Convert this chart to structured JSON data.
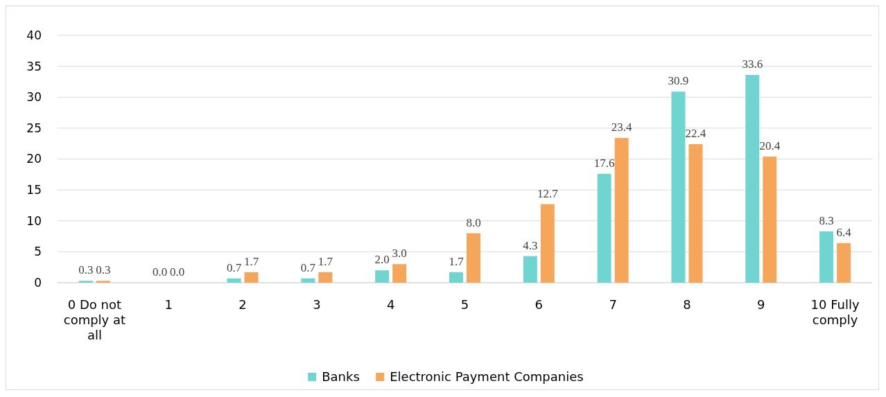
{
  "chart_data": {
    "type": "bar",
    "categories": [
      "0 Do not comply at all",
      "1",
      "2",
      "3",
      "4",
      "5",
      "6",
      "7",
      "8",
      "9",
      "10 Fully comply"
    ],
    "series": [
      {
        "name": "Banks",
        "color": "#70d5d1",
        "values": [
          0.3,
          0.0,
          0.7,
          0.7,
          2.0,
          1.7,
          4.3,
          17.6,
          30.9,
          33.6,
          8.3
        ],
        "value_labels": [
          "0.3",
          "0.0",
          "0.7",
          "0.7",
          "2.0",
          "1.7",
          "4.3",
          "17.6",
          "30.9",
          "33.6",
          "8.3"
        ]
      },
      {
        "name": "Electronic Payment Companies",
        "color": "#f5a65b",
        "values": [
          0.3,
          0.0,
          1.7,
          1.7,
          3.0,
          8.0,
          12.7,
          23.4,
          22.4,
          20.4,
          6.4
        ],
        "value_labels": [
          "0.3",
          "0.0",
          "1.7",
          "1.7",
          "3.0",
          "8.0",
          "12.7",
          "23.4",
          "22.4",
          "20.4",
          "6.4"
        ]
      }
    ],
    "ylim": [
      0,
      40
    ],
    "yticks": [
      0,
      5,
      10,
      15,
      20,
      25,
      30,
      35,
      40
    ],
    "grid": "y",
    "legend": "bottom"
  }
}
